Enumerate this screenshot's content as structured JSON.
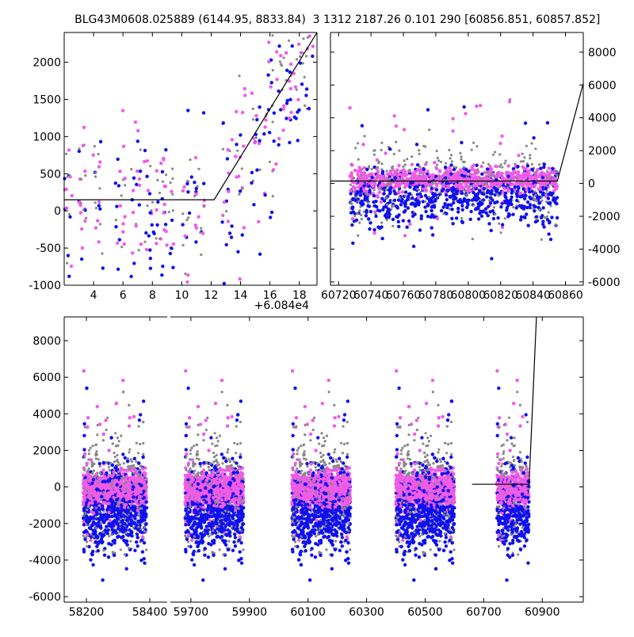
{
  "header": {
    "left_title": "BLG43M0608.025889 (6144.95, 8833.84)",
    "right_title": "3 1312 2187.26 0.101 290 [60856.851, 60857.852]"
  },
  "colors": {
    "blue": "#1010ee",
    "magenta": "#f05ce6",
    "gray": "#888888",
    "model": "#000000"
  },
  "chart_data": [
    {
      "id": "zoom_left",
      "type": "scatter",
      "offset_label": "+6.084e4",
      "xlim": [
        2.0,
        19.2
      ],
      "ylim": [
        -1000,
        2400
      ],
      "xticks": [
        "4",
        "6",
        "8",
        "10",
        "12",
        "14",
        "16",
        "18"
      ],
      "xtick_values": [
        4,
        6,
        8,
        10,
        12,
        14,
        16,
        18
      ],
      "yticks": [
        "-1000",
        "-500",
        "0",
        "500",
        "1000",
        "1500",
        "2000"
      ],
      "ytick_values": [
        -1000,
        -500,
        0,
        500,
        1000,
        1500,
        2000
      ],
      "model": {
        "x": [
          2.0,
          12.2,
          19.2
        ],
        "y": [
          150,
          150,
          2400
        ]
      }
    },
    {
      "id": "zoom_right",
      "type": "scatter",
      "xlim": [
        60715,
        60871
      ],
      "ylim": [
        -6200,
        9200
      ],
      "xticks": [
        "60720",
        "60740",
        "60760",
        "60780",
        "60800",
        "60820",
        "60840",
        "60860"
      ],
      "xtick_values": [
        60720,
        60740,
        60760,
        60780,
        60800,
        60820,
        60840,
        60860
      ],
      "yticks": [
        "-6000",
        "-4000",
        "-2000",
        "0",
        "2000",
        "4000",
        "6000",
        "8000"
      ],
      "ytick_values": [
        -6000,
        -4000,
        -2000,
        0,
        2000,
        4000,
        6000,
        8000
      ],
      "model": {
        "x": [
          60715,
          60855,
          60871
        ],
        "y": [
          150,
          150,
          6100
        ]
      }
    },
    {
      "id": "full_lightcurve",
      "type": "scatter",
      "segments": [
        {
          "xlim": [
            58130,
            58455
          ],
          "xticks": [
            "58200",
            "58400"
          ],
          "xtick_values": [
            58200,
            58400
          ]
        },
        {
          "xlim": [
            59630,
            61040
          ],
          "xticks": [
            "59700",
            "59900",
            "60100",
            "60300",
            "60500",
            "60700",
            "60900"
          ],
          "xtick_values": [
            59700,
            59900,
            60100,
            60300,
            60500,
            60700,
            60900
          ]
        }
      ],
      "ylim": [
        -6300,
        9300
      ],
      "yticks": [
        "-6000",
        "-4000",
        "-2000",
        "0",
        "2000",
        "4000",
        "6000",
        "8000"
      ],
      "ytick_values": [
        -6000,
        -4000,
        -2000,
        0,
        2000,
        4000,
        6000,
        8000
      ],
      "seasons": [
        {
          "center": 58290,
          "width": 200
        },
        {
          "center": 59780,
          "width": 200
        },
        {
          "center": 60145,
          "width": 200
        },
        {
          "center": 60500,
          "width": 200
        },
        {
          "center": 60800,
          "width": 110
        }
      ],
      "model": {
        "x": [
          60660,
          60855,
          60880
        ],
        "y": [
          150,
          150,
          9300
        ]
      }
    }
  ]
}
